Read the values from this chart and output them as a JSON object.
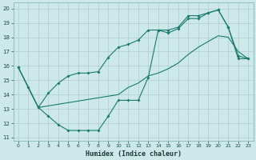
{
  "xlabel": "Humidex (Indice chaleur)",
  "xlim": [
    -0.5,
    23.5
  ],
  "ylim": [
    10.8,
    20.4
  ],
  "yticks": [
    11,
    12,
    13,
    14,
    15,
    16,
    17,
    18,
    19,
    20
  ],
  "xticks": [
    0,
    1,
    2,
    3,
    4,
    5,
    6,
    7,
    8,
    9,
    10,
    11,
    12,
    13,
    14,
    15,
    16,
    17,
    18,
    19,
    20,
    21,
    22,
    23
  ],
  "bg_color": "#cce8e8",
  "line_color": "#1a7a6e",
  "grid_color": "#b0cccc",
  "curve1_x": [
    0,
    1,
    2,
    3,
    4,
    5,
    6,
    7,
    8,
    9,
    10,
    11,
    12,
    13,
    14,
    15,
    16,
    17,
    18,
    19,
    20,
    21,
    22,
    23
  ],
  "curve1_y": [
    15.9,
    14.5,
    13.1,
    12.5,
    11.9,
    11.5,
    11.5,
    11.5,
    11.5,
    12.5,
    13.6,
    13.6,
    13.6,
    15.2,
    18.5,
    18.3,
    18.6,
    19.3,
    19.3,
    19.7,
    19.9,
    18.7,
    16.5,
    16.5
  ],
  "curve2_x": [
    0,
    2,
    3,
    4,
    5,
    6,
    7,
    8,
    9,
    10,
    11,
    12,
    13,
    14,
    15,
    16,
    17,
    18,
    19,
    20,
    21,
    22,
    23
  ],
  "curve2_y": [
    15.9,
    13.1,
    14.1,
    14.8,
    15.3,
    15.5,
    15.5,
    15.6,
    16.6,
    17.3,
    17.5,
    17.8,
    18.5,
    18.5,
    18.5,
    18.7,
    19.5,
    19.5,
    19.7,
    19.9,
    18.7,
    16.7,
    16.5
  ],
  "curve3_x": [
    0,
    1,
    2,
    10,
    11,
    12,
    13,
    14,
    15,
    16,
    17,
    18,
    19,
    20,
    21,
    22,
    23
  ],
  "curve3_y": [
    15.9,
    14.5,
    13.1,
    14.0,
    14.5,
    14.8,
    15.3,
    15.5,
    15.8,
    16.2,
    16.8,
    17.3,
    17.7,
    18.1,
    18.0,
    17.0,
    16.5
  ]
}
